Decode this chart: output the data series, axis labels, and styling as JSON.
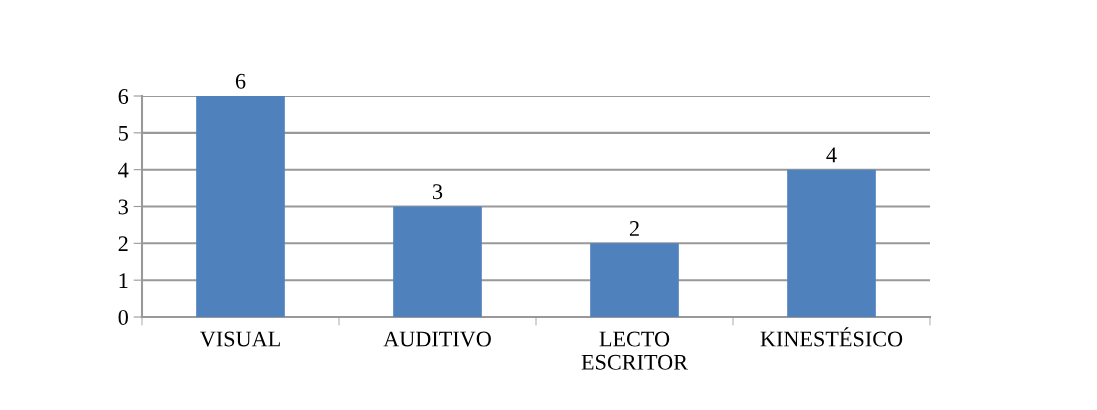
{
  "chart_data": {
    "type": "bar",
    "categories": [
      "VISUAL",
      "AUDITIVO",
      "LECTO\nESCRITOR",
      "KINESTÉSICO"
    ],
    "values": [
      6,
      3,
      2,
      4
    ],
    "color": "#4f81bd",
    "ylim": [
      0,
      6
    ],
    "yticks": [
      0,
      1,
      2,
      3,
      4,
      5,
      6
    ],
    "grid": "y",
    "data_labels": true
  }
}
